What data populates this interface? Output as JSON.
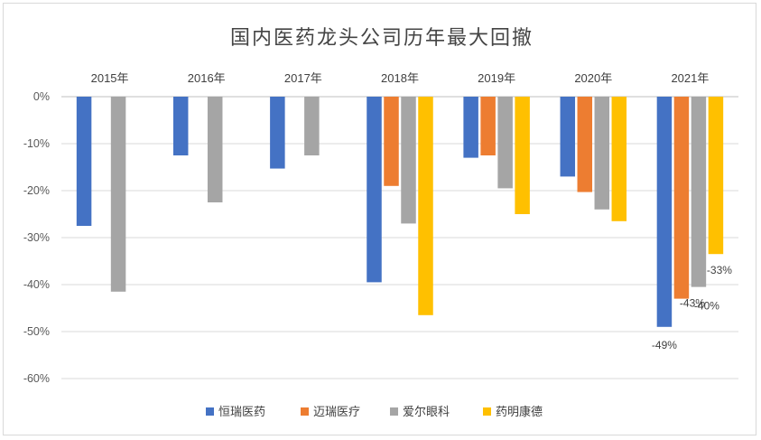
{
  "chart_data": {
    "type": "bar",
    "title": "国内医药龙头公司历年最大回撤",
    "categories": [
      "2015年",
      "2016年",
      "2017年",
      "2018年",
      "2019年",
      "2020年",
      "2021年"
    ],
    "series": [
      {
        "name": "恒瑞医药",
        "color": "#4472c4",
        "values": [
          -27.5,
          -12.5,
          -15.3,
          -39.5,
          -13,
          -17,
          -49
        ]
      },
      {
        "name": "迈瑞医疗",
        "color": "#ed7d31",
        "values": [
          null,
          null,
          null,
          -19,
          -12.5,
          -20.3,
          -43
        ]
      },
      {
        "name": "爱尔眼科",
        "color": "#a5a5a5",
        "values": [
          -41.5,
          -22.5,
          -12.5,
          -27,
          -19.5,
          -24,
          -40.5
        ]
      },
      {
        "name": "药明康德",
        "color": "#ffc000",
        "values": [
          null,
          null,
          null,
          -46.5,
          -25,
          -26.5,
          -33.5
        ]
      }
    ],
    "data_labels": [
      {
        "series": 0,
        "category": 6,
        "text": "-49%"
      },
      {
        "series": 1,
        "category": 6,
        "text": "-43%"
      },
      {
        "series": 2,
        "category": 6,
        "text": "-40%"
      },
      {
        "series": 3,
        "category": 6,
        "text": "-33%"
      }
    ],
    "y_ticks": [
      "0%",
      "-10%",
      "-20%",
      "-30%",
      "-40%",
      "-50%",
      "-60%"
    ],
    "ylim": [
      -60,
      0
    ],
    "grid": true,
    "legend_position": "bottom",
    "xaxis_position": "top"
  }
}
